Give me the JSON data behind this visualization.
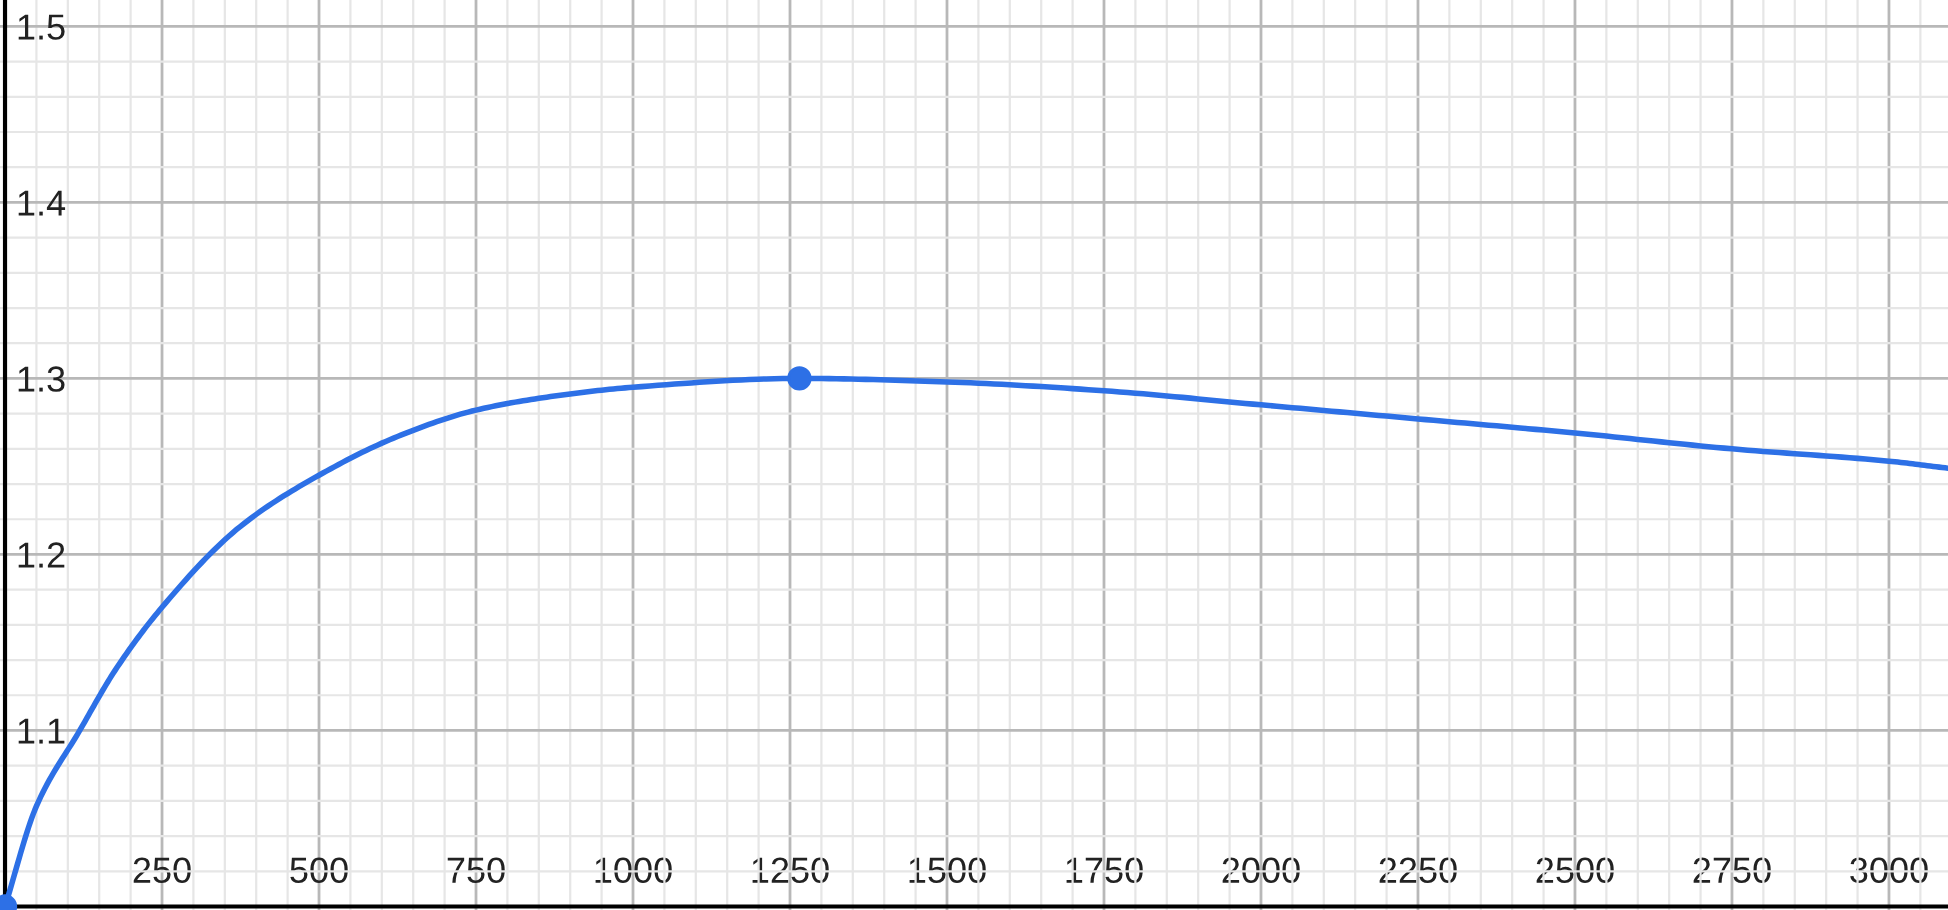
{
  "chart_data": {
    "type": "line",
    "xlim": [
      -8,
      3094
    ],
    "ylim": [
      0.998,
      1.515
    ],
    "xticks": [
      250,
      500,
      750,
      1000,
      1250,
      1500,
      1750,
      2000,
      2250,
      2500,
      2750,
      3000
    ],
    "yticks": [
      1.1,
      1.2,
      1.3,
      1.4,
      1.5
    ],
    "grid": true,
    "series": [
      {
        "color": "#2d70e6",
        "marker": "none",
        "x": [
          0,
          50,
          119,
          175,
          250,
          375,
          500,
          625,
          750,
          875,
          1000,
          1265,
          1500,
          1750,
          2000,
          2250,
          2500,
          2750,
          3000,
          3094
        ],
        "values": [
          1.0,
          1.057,
          1.1,
          1.134,
          1.17,
          1.216,
          1.245,
          1.267,
          1.282,
          1.29,
          1.295,
          1.3,
          1.298,
          1.293,
          1.285,
          1.277,
          1.269,
          1.26,
          1.253,
          1.249
        ]
      },
      {
        "type": "scatter",
        "color": "#2d70e6",
        "marker": "circle",
        "x": [
          0,
          1265
        ],
        "values": [
          1.0,
          1.3
        ]
      }
    ]
  }
}
